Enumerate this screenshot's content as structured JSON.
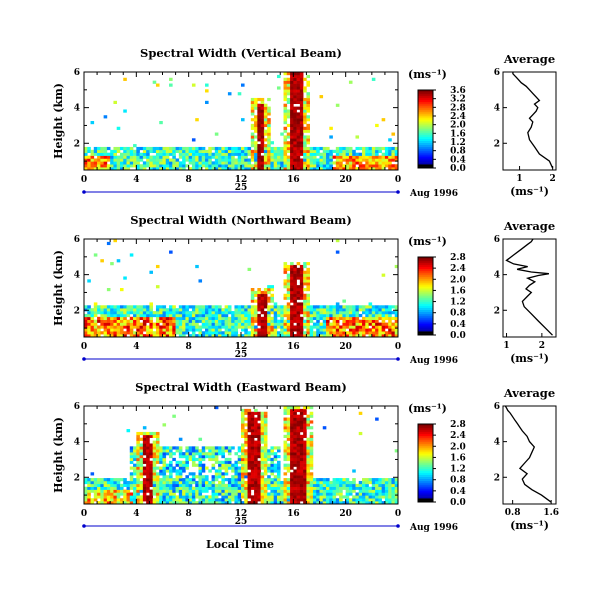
{
  "figure": {
    "date_label": "25",
    "month_label": "Aug 1996",
    "x_axis_label": "Local Time",
    "y_axis_label": "Height (km)",
    "average_title": "Average",
    "unit_label": "(ms⁻¹)"
  },
  "chart_data": [
    {
      "type": "heatmap",
      "title": "Spectral Width (Vertical Beam)",
      "xlabel": "",
      "ylabel": "Height (km)",
      "x_ticks": [
        "0",
        "4",
        "8",
        "12",
        "16",
        "20",
        "0"
      ],
      "y_ticks": [
        "2",
        "4",
        "6"
      ],
      "xlim": [
        0,
        24
      ],
      "ylim": [
        0.5,
        6
      ],
      "colorbar": {
        "label": "(ms⁻¹)",
        "ticks": [
          "0.0",
          "0.4",
          "0.8",
          "1.2",
          "1.6",
          "2.0",
          "2.4",
          "2.8",
          "3.2",
          "3.6"
        ],
        "range": [
          0,
          3.6
        ]
      },
      "average_profile": {
        "title": "Average",
        "xlabel": "(ms⁻¹)",
        "x_ticks": [
          "1",
          "2"
        ],
        "y_ticks": [
          "2",
          "4",
          "6"
        ],
        "xlim": [
          0.5,
          2.1
        ],
        "ylim": [
          0.5,
          6
        ],
        "x": [
          2.0,
          1.9,
          1.6,
          1.45,
          1.3,
          1.25,
          1.35,
          1.4,
          1.3,
          1.4,
          1.5,
          1.55,
          1.45,
          1.6,
          1.5,
          1.4,
          1.3,
          1.2,
          1.05,
          0.95,
          0.9,
          0.85,
          0.8,
          0.8
        ],
        "y": [
          0.6,
          1.0,
          1.4,
          1.8,
          2.2,
          2.6,
          2.9,
          3.2,
          3.4,
          3.6,
          3.8,
          4.0,
          4.2,
          4.4,
          4.6,
          4.8,
          5.0,
          5.2,
          5.4,
          5.6,
          5.7,
          5.8,
          5.9,
          6.0
        ]
      }
    },
    {
      "type": "heatmap",
      "title": "Spectral Width (Northward Beam)",
      "xlabel": "",
      "ylabel": "Height (km)",
      "x_ticks": [
        "0",
        "4",
        "8",
        "12",
        "16",
        "20",
        "0"
      ],
      "y_ticks": [
        "2",
        "4",
        "6"
      ],
      "xlim": [
        0,
        24
      ],
      "ylim": [
        0.5,
        6
      ],
      "colorbar": {
        "label": "(ms⁻¹)",
        "ticks": [
          "0.0",
          "0.4",
          "0.8",
          "1.2",
          "1.6",
          "2.0",
          "2.4",
          "2.8"
        ],
        "range": [
          0,
          2.8
        ]
      },
      "average_profile": {
        "title": "Average",
        "xlabel": "(ms⁻¹)",
        "x_ticks": [
          "1",
          "2"
        ],
        "y_ticks": [
          "2",
          "4",
          "6"
        ],
        "xlim": [
          0.9,
          2.4
        ],
        "ylim": [
          0.5,
          6
        ],
        "x": [
          2.3,
          2.1,
          1.9,
          1.7,
          1.5,
          1.45,
          1.6,
          1.7,
          1.55,
          1.65,
          1.8,
          1.6,
          1.9,
          2.2,
          1.7,
          1.3,
          1.6,
          1.2,
          1.0,
          1.2,
          1.4,
          1.6,
          1.7,
          1.75
        ],
        "y": [
          0.6,
          1.0,
          1.4,
          1.8,
          2.2,
          2.5,
          2.8,
          3.0,
          3.2,
          3.4,
          3.6,
          3.8,
          3.95,
          4.05,
          4.15,
          4.3,
          4.45,
          4.6,
          4.8,
          5.1,
          5.4,
          5.7,
          5.85,
          6.0
        ]
      }
    },
    {
      "type": "heatmap",
      "title": "Spectral Width (Eastward Beam)",
      "xlabel": "Local Time",
      "ylabel": "Height (km)",
      "x_ticks": [
        "0",
        "4",
        "8",
        "12",
        "16",
        "20",
        "0"
      ],
      "y_ticks": [
        "2",
        "4",
        "6"
      ],
      "xlim": [
        0,
        24
      ],
      "ylim": [
        0.5,
        6
      ],
      "colorbar": {
        "label": "(ms⁻¹)",
        "ticks": [
          "0.0",
          "0.4",
          "0.8",
          "1.2",
          "1.6",
          "2.0",
          "2.4",
          "2.8"
        ],
        "range": [
          0,
          2.8
        ]
      },
      "average_profile": {
        "title": "Average",
        "xlabel": "(ms⁻¹)",
        "x_ticks": [
          "0.8",
          "1.6"
        ],
        "y_ticks": [
          "2",
          "4",
          "6"
        ],
        "xlim": [
          0.6,
          1.7
        ],
        "ylim": [
          0.5,
          6
        ],
        "x": [
          1.6,
          1.4,
          1.2,
          1.05,
          1.0,
          1.1,
          0.95,
          1.05,
          1.15,
          1.2,
          1.25,
          1.15,
          1.1,
          1.0,
          0.95,
          0.9,
          0.85,
          0.8,
          0.75,
          0.7,
          0.68,
          0.66,
          0.65
        ],
        "y": [
          0.6,
          1.0,
          1.3,
          1.6,
          1.9,
          2.2,
          2.5,
          2.8,
          3.1,
          3.4,
          3.7,
          4.0,
          4.3,
          4.6,
          4.8,
          5.0,
          5.2,
          5.4,
          5.6,
          5.75,
          5.85,
          5.95,
          6.0
        ]
      }
    }
  ]
}
